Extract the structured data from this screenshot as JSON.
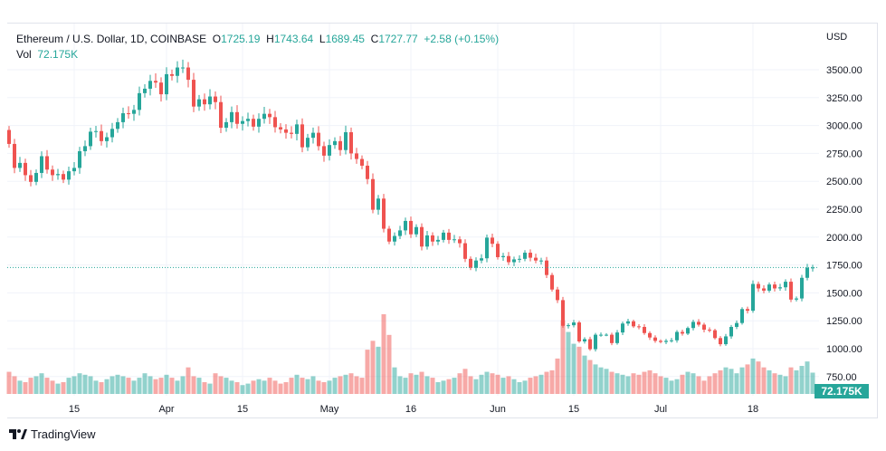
{
  "legend": {
    "symbol": "Ethereum / U.S. Dollar, 1D, COINBASE",
    "o_label": "O",
    "o": "1725.19",
    "h_label": "H",
    "h": "1743.64",
    "l_label": "L",
    "l": "1689.45",
    "c_label": "C",
    "c": "1727.77",
    "change": "+2.58 (+0.15%)",
    "vol_label": "Vol",
    "vol": "72.175K"
  },
  "branding": "TradingView",
  "chart_data": {
    "type": "candlestick",
    "title": "Ethereum / U.S. Dollar, 1D, COINBASE",
    "currency": "USD",
    "start_close": 2960,
    "closes": [
      2835,
      2620,
      2665,
      2555,
      2495,
      2575,
      2725,
      2605,
      2555,
      2565,
      2515,
      2590,
      2620,
      2770,
      2815,
      2945,
      2950,
      2860,
      2895,
      2970,
      3030,
      3110,
      3105,
      3140,
      3290,
      3330,
      3400,
      3385,
      3280,
      3460,
      3445,
      3520,
      3520,
      3410,
      3170,
      3235,
      3190,
      3260,
      3210,
      2980,
      3030,
      3120,
      3015,
      3040,
      3060,
      2990,
      3060,
      3105,
      3075,
      2985,
      2965,
      2935,
      2925,
      3010,
      2805,
      2890,
      2935,
      2815,
      2730,
      2825,
      2860,
      2780,
      2940,
      2750,
      2700,
      2640,
      2520,
      2245,
      2345,
      2075,
      1960,
      2010,
      2060,
      2145,
      2025,
      2090,
      1915,
      2015,
      1960,
      1975,
      2040,
      1975,
      1980,
      1945,
      1805,
      1725,
      1790,
      1810,
      1995,
      1940,
      1820,
      1830,
      1775,
      1800,
      1805,
      1860,
      1815,
      1790,
      1790,
      1660,
      1530,
      1435,
      1205,
      1210,
      1235,
      1065,
      1085,
      995,
      1125,
      1125,
      1125,
      1050,
      1145,
      1225,
      1245,
      1200,
      1195,
      1140,
      1100,
      1070,
      1060,
      1070,
      1075,
      1150,
      1135,
      1185,
      1240,
      1215,
      1170,
      1165,
      1095,
      1040,
      1110,
      1195,
      1230,
      1355,
      1340,
      1580,
      1540,
      1520,
      1575,
      1540,
      1550,
      1600,
      1440,
      1450,
      1635,
      1725,
      1727.77
    ],
    "volumes_k": [
      75,
      60,
      45,
      40,
      55,
      60,
      70,
      55,
      45,
      35,
      40,
      55,
      60,
      70,
      65,
      60,
      45,
      40,
      50,
      60,
      65,
      60,
      55,
      45,
      55,
      70,
      60,
      50,
      55,
      65,
      55,
      45,
      60,
      90,
      60,
      55,
      40,
      35,
      70,
      60,
      55,
      45,
      40,
      30,
      35,
      45,
      50,
      45,
      55,
      45,
      35,
      40,
      55,
      65,
      55,
      50,
      60,
      45,
      40,
      45,
      55,
      60,
      65,
      70,
      60,
      55,
      150,
      180,
      160,
      270,
      200,
      90,
      60,
      55,
      70,
      65,
      75,
      60,
      55,
      40,
      45,
      50,
      55,
      70,
      85,
      60,
      50,
      65,
      75,
      70,
      65,
      55,
      60,
      50,
      40,
      45,
      55,
      60,
      65,
      75,
      80,
      120,
      250,
      210,
      170,
      160,
      130,
      115,
      100,
      90,
      85,
      75,
      70,
      65,
      60,
      70,
      65,
      75,
      80,
      70,
      60,
      55,
      45,
      50,
      65,
      75,
      70,
      60,
      45,
      60,
      70,
      80,
      90,
      85,
      70,
      90,
      100,
      120,
      110,
      90,
      80,
      70,
      65,
      60,
      90,
      80,
      95,
      110,
      72.175
    ],
    "y_ticks": [
      "3500.00",
      "3250.00",
      "3000.00",
      "2750.00",
      "2500.00",
      "2250.00",
      "2000.00",
      "1750.00",
      "1500.00",
      "1250.00",
      "1000.00",
      "750.00"
    ],
    "y_tick_values": [
      3500,
      3250,
      3000,
      2750,
      2500,
      2250,
      2000,
      1750,
      1500,
      1250,
      1000,
      750
    ],
    "x_ticks": [
      {
        "label": "15",
        "day_index": 12
      },
      {
        "label": "Apr",
        "day_index": 29
      },
      {
        "label": "15",
        "day_index": 43
      },
      {
        "label": "May",
        "day_index": 59
      },
      {
        "label": "16",
        "day_index": 74
      },
      {
        "label": "Jun",
        "day_index": 90
      },
      {
        "label": "15",
        "day_index": 104
      },
      {
        "label": "Jul",
        "day_index": 120
      },
      {
        "label": "18",
        "day_index": 137
      }
    ],
    "last_price": 1727.77,
    "last_volume_label": "72.175K",
    "colors": {
      "up": "#26a69a",
      "down": "#ef5350",
      "grid": "#f0f3fa",
      "axis_text": "#131722"
    }
  }
}
